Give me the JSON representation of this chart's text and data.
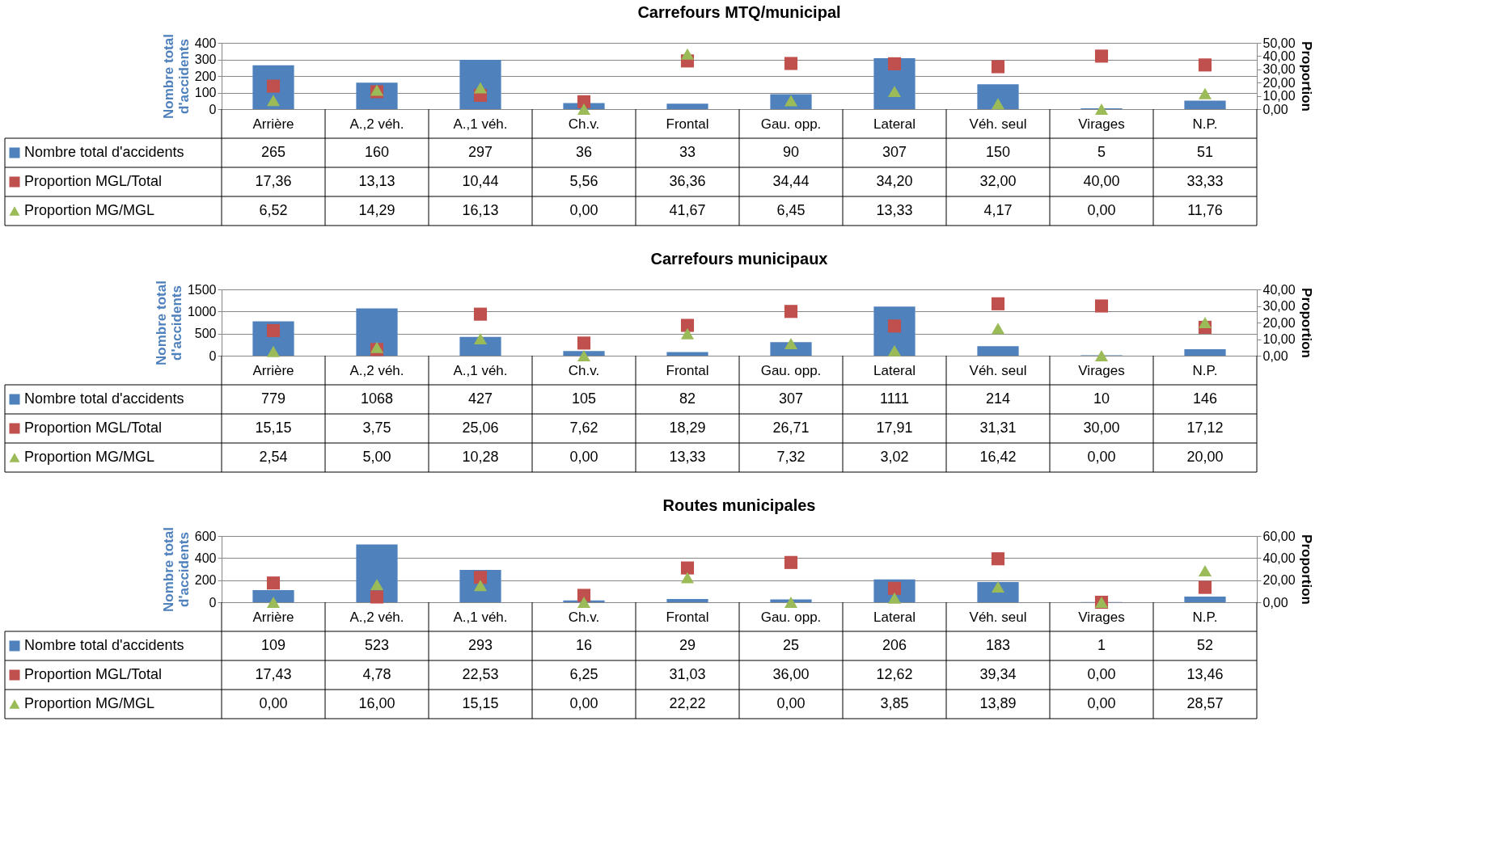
{
  "chart_data": [
    {
      "type": "bar",
      "title": "Carrefours MTQ/municipal",
      "ylabel": "Nombre total d'accidents",
      "y2label": "Proportion",
      "categories": [
        "Arrière",
        "A.,2 véh.",
        "A.,1 véh.",
        "Ch.v.",
        "Frontal",
        "Gau. opp.",
        "Lateral",
        "Véh. seul",
        "Virages",
        "N.P."
      ],
      "series": [
        {
          "name": "Nombre total d'accidents",
          "color": "#4f81bd",
          "values": [
            265,
            160,
            297,
            36,
            33,
            90,
            307,
            150,
            5,
            51
          ],
          "value_labels": [
            "265",
            "160",
            "297",
            "36",
            "33",
            "90",
            "307",
            "150",
            "5",
            "51"
          ]
        },
        {
          "name": "Proportion MGL/Total",
          "type": "scatter",
          "axis": "y2",
          "marker": "square",
          "color": "#c0504d",
          "values": [
            17.36,
            13.13,
            10.44,
            5.56,
            36.36,
            34.44,
            34.2,
            32.0,
            40.0,
            33.33
          ],
          "value_labels": [
            "17,36",
            "13,13",
            "10,44",
            "5,56",
            "36,36",
            "34,44",
            "34,20",
            "32,00",
            "40,00",
            "33,33"
          ]
        },
        {
          "name": "Proportion MG/MGL",
          "type": "scatter",
          "axis": "y2",
          "marker": "triangle",
          "color": "#9bbb59",
          "values": [
            6.52,
            14.29,
            16.13,
            0.0,
            41.67,
            6.45,
            13.33,
            4.17,
            0.0,
            11.76
          ],
          "value_labels": [
            "6,52",
            "14,29",
            "16,13",
            "0,00",
            "41,67",
            "6,45",
            "13,33",
            "4,17",
            "0,00",
            "11,76"
          ]
        }
      ],
      "ylim": [
        0,
        400
      ],
      "yticks": [
        0,
        100,
        200,
        300,
        400
      ],
      "y2lim": [
        0,
        50
      ],
      "y2ticks": [
        {
          "value": 0,
          "label": "0,00"
        },
        {
          "value": 10,
          "label": "10,00"
        },
        {
          "value": 20,
          "label": "20,00"
        },
        {
          "value": 30,
          "label": "30,00"
        },
        {
          "value": 40,
          "label": "40,00"
        },
        {
          "value": 50,
          "label": "50,00"
        }
      ],
      "grid": "y",
      "legend": "bottom"
    },
    {
      "type": "bar",
      "title": "Carrefours municipaux",
      "ylabel": "Nombre total d'accidents",
      "y2label": "Proportion",
      "categories": [
        "Arrière",
        "A.,2 véh.",
        "A.,1 véh.",
        "Ch.v.",
        "Frontal",
        "Gau. opp.",
        "Lateral",
        "Véh. seul",
        "Virages",
        "N.P."
      ],
      "series": [
        {
          "name": "Nombre total d'accidents",
          "color": "#4f81bd",
          "values": [
            779,
            1068,
            427,
            105,
            82,
            307,
            1111,
            214,
            10,
            146
          ],
          "value_labels": [
            "779",
            "1068",
            "427",
            "105",
            "82",
            "307",
            "1111",
            "214",
            "10",
            "146"
          ]
        },
        {
          "name": "Proportion MGL/Total",
          "type": "scatter",
          "axis": "y2",
          "marker": "square",
          "color": "#c0504d",
          "values": [
            15.15,
            3.75,
            25.06,
            7.62,
            18.29,
            26.71,
            17.91,
            31.31,
            30.0,
            17.12
          ],
          "value_labels": [
            "15,15",
            "3,75",
            "25,06",
            "7,62",
            "18,29",
            "26,71",
            "17,91",
            "31,31",
            "30,00",
            "17,12"
          ]
        },
        {
          "name": "Proportion MG/MGL",
          "type": "scatter",
          "axis": "y2",
          "marker": "triangle",
          "color": "#9bbb59",
          "values": [
            2.54,
            5.0,
            10.28,
            0.0,
            13.33,
            7.32,
            3.02,
            16.42,
            0.0,
            20.0
          ],
          "value_labels": [
            "2,54",
            "5,00",
            "10,28",
            "0,00",
            "13,33",
            "7,32",
            "3,02",
            "16,42",
            "0,00",
            "20,00"
          ]
        }
      ],
      "ylim": [
        0,
        1500
      ],
      "yticks": [
        0,
        500,
        1000,
        1500
      ],
      "y2lim": [
        0,
        40
      ],
      "y2ticks": [
        {
          "value": 0,
          "label": "0,00"
        },
        {
          "value": 10,
          "label": "10,00"
        },
        {
          "value": 20,
          "label": "20,00"
        },
        {
          "value": 30,
          "label": "30,00"
        },
        {
          "value": 40,
          "label": "40,00"
        }
      ],
      "grid": "y",
      "legend": "bottom"
    },
    {
      "type": "bar",
      "title": "Routes municipales",
      "ylabel": "Nombre total d'accidents",
      "y2label": "Proportion",
      "categories": [
        "Arrière",
        "A.,2 véh.",
        "A.,1 véh.",
        "Ch.v.",
        "Frontal",
        "Gau. opp.",
        "Lateral",
        "Véh. seul",
        "Virages",
        "N.P."
      ],
      "series": [
        {
          "name": "Nombre total d'accidents",
          "color": "#4f81bd",
          "values": [
            109,
            523,
            293,
            16,
            29,
            25,
            206,
            183,
            1,
            52
          ],
          "value_labels": [
            "109",
            "523",
            "293",
            "16",
            "29",
            "25",
            "206",
            "183",
            "1",
            "52"
          ]
        },
        {
          "name": "Proportion MGL/Total",
          "type": "scatter",
          "axis": "y2",
          "marker": "square",
          "color": "#c0504d",
          "values": [
            17.43,
            4.78,
            22.53,
            6.25,
            31.03,
            36.0,
            12.62,
            39.34,
            0.0,
            13.46
          ],
          "value_labels": [
            "17,43",
            "4,78",
            "22,53",
            "6,25",
            "31,03",
            "36,00",
            "12,62",
            "39,34",
            "0,00",
            "13,46"
          ]
        },
        {
          "name": "Proportion MG/MGL",
          "type": "scatter",
          "axis": "y2",
          "marker": "triangle",
          "color": "#9bbb59",
          "values": [
            0.0,
            16.0,
            15.15,
            0.0,
            22.22,
            0.0,
            3.85,
            13.89,
            0.0,
            28.57
          ],
          "value_labels": [
            "0,00",
            "16,00",
            "15,15",
            "0,00",
            "22,22",
            "0,00",
            "3,85",
            "13,89",
            "0,00",
            "28,57"
          ]
        }
      ],
      "ylim": [
        0,
        600
      ],
      "yticks": [
        0,
        200,
        400,
        600
      ],
      "y2lim": [
        0,
        60
      ],
      "y2ticks": [
        {
          "value": 0,
          "label": "0,00"
        },
        {
          "value": 20,
          "label": "20,00"
        },
        {
          "value": 40,
          "label": "40,00"
        },
        {
          "value": 60,
          "label": "60,00"
        }
      ],
      "grid": "y",
      "legend": "bottom"
    }
  ]
}
